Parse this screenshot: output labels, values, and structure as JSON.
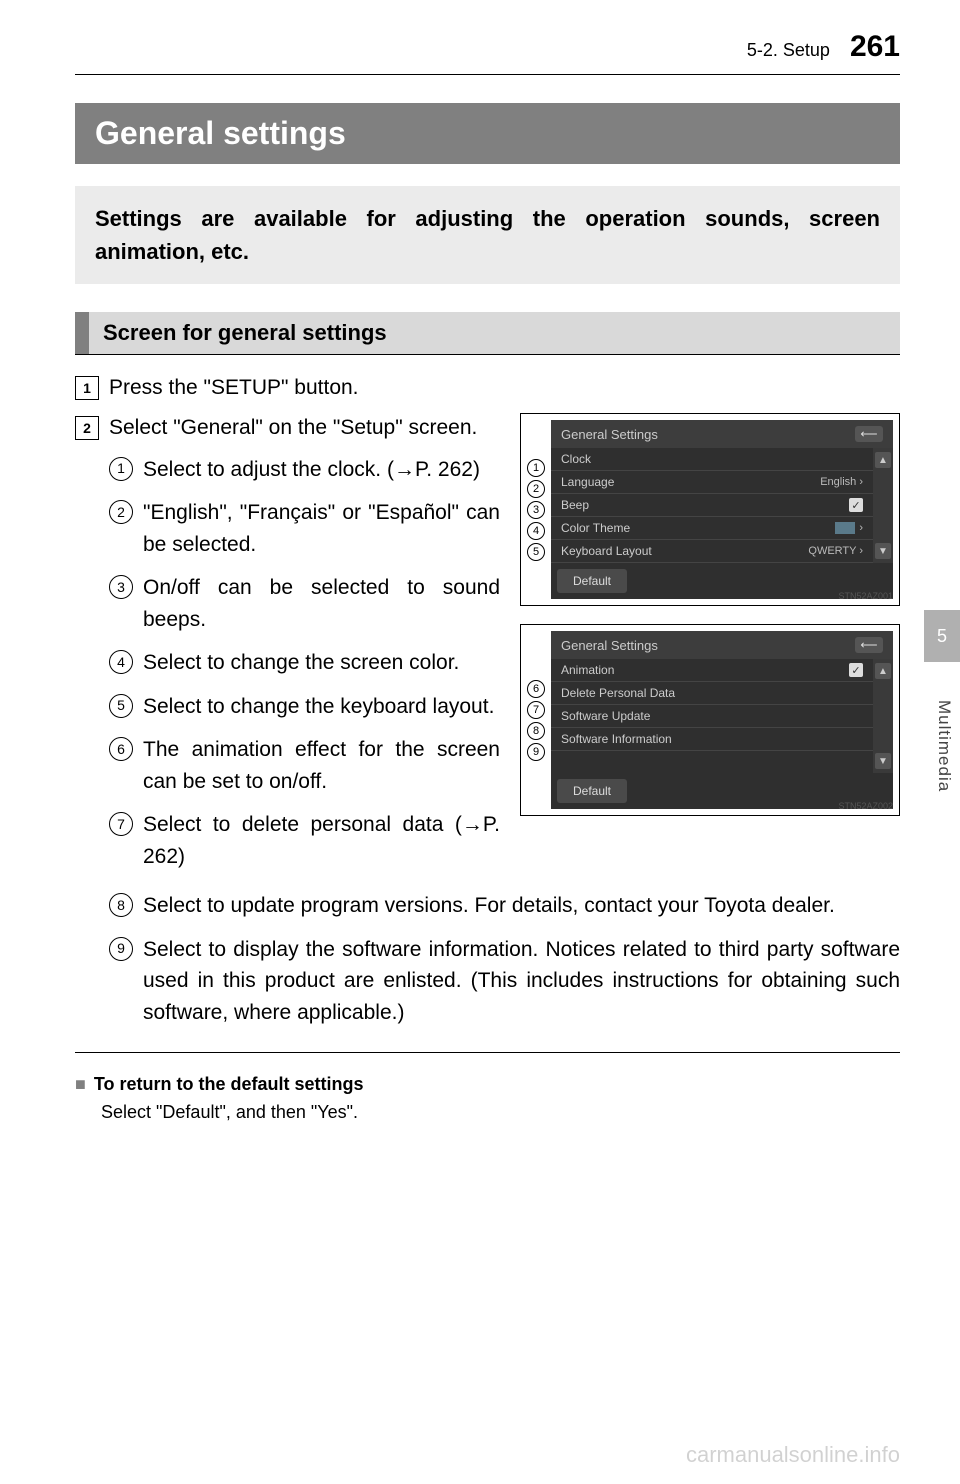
{
  "header": {
    "section": "5-2. Setup",
    "page_number": "261"
  },
  "title": "General settings",
  "intro": "Settings are available for adjusting the operation sounds, screen animation, etc.",
  "subheading": "Screen for general settings",
  "steps": {
    "s1": "Press the \"SETUP\" button.",
    "s2": "Select \"General\" on the \"Setup\" screen."
  },
  "items": {
    "i1": "Select to adjust the clock. (→P. 262)",
    "i2": "\"English\", \"Français\" or \"Español\" can be selected.",
    "i3": "On/off can be selected to sound beeps.",
    "i4": "Select to change the screen color.",
    "i5": "Select to change the keyboard layout.",
    "i6": "The animation effect for the screen can be set to on/off.",
    "i7": "Select to delete personal data (→P. 262)",
    "i8": "Select to update program versions. For details, contact your Toyota dealer.",
    "i9": "Select to display the software information. Notices related to third party software used in this product are enlisted. (This includes instructions for obtaining such software, where applicable.)"
  },
  "screenshot1": {
    "title": "General Settings",
    "rows": {
      "r1": {
        "label": "Clock",
        "value": ""
      },
      "r2": {
        "label": "Language",
        "value": "English ›"
      },
      "r3": {
        "label": "Beep",
        "value": "✓"
      },
      "r4": {
        "label": "Color Theme",
        "value": "›"
      },
      "r5": {
        "label": "Keyboard Layout",
        "value": "QWERTY ›"
      }
    },
    "default_btn": "Default",
    "fig_id": "STN52AZ001",
    "callouts": [
      "1",
      "2",
      "3",
      "4",
      "5"
    ]
  },
  "screenshot2": {
    "title": "General Settings",
    "rows": {
      "r1": {
        "label": "Animation",
        "value": "✓"
      },
      "r2": {
        "label": "Delete Personal Data",
        "value": ""
      },
      "r3": {
        "label": "Software Update",
        "value": ""
      },
      "r4": {
        "label": "Software Information",
        "value": ""
      }
    },
    "default_btn": "Default",
    "fig_id": "STN52AZ002",
    "callouts": [
      "6",
      "7",
      "8",
      "9"
    ]
  },
  "note": {
    "title": "To return to the default settings",
    "body": "Select \"Default\", and then \"Yes\"."
  },
  "side": {
    "chapter": "5",
    "label": "Multimedia"
  },
  "watermark": "carmanualsonline.info",
  "colors": {
    "title_bar_bg": "#808080",
    "intro_bg": "#ebebeb",
    "subhead_bg": "#d9d9d9",
    "device_bg": "#2f2f2f",
    "side_tab_bg": "#b0b0b0"
  }
}
